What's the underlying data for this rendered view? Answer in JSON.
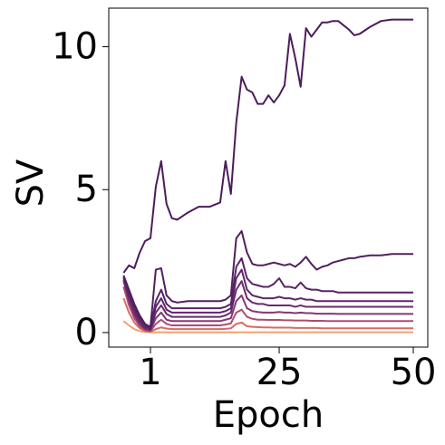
{
  "chart_data": {
    "type": "line",
    "xlabel": "Epoch",
    "ylabel": "SV",
    "x": [
      -4,
      -3,
      -2,
      -1,
      0,
      1,
      2,
      3,
      4,
      5,
      6,
      8,
      10,
      12,
      14,
      15,
      16,
      17,
      18,
      19,
      20,
      21,
      22,
      23,
      24,
      25,
      26,
      27,
      28,
      29,
      30,
      31,
      32,
      33,
      34,
      35,
      36,
      37,
      38,
      39,
      40,
      42,
      44,
      46,
      48,
      50
    ],
    "xlim": [
      -6.77,
      52.7
    ],
    "xticks": [
      1,
      25,
      50
    ],
    "ylim": [
      -0.51,
      11.35
    ],
    "yticks": [
      0,
      5,
      10
    ],
    "series": [
      {
        "color": "#4b1d5a",
        "values": [
          2.09,
          2.35,
          2.25,
          2.8,
          3.2,
          3.3,
          5.1,
          6.0,
          4.5,
          4.0,
          3.95,
          4.2,
          4.4,
          4.4,
          4.55,
          6.0,
          4.85,
          7.35,
          8.95,
          8.5,
          8.4,
          8.0,
          8.0,
          8.3,
          8.05,
          8.3,
          8.65,
          10.45,
          9.6,
          8.6,
          10.65,
          10.35,
          10.6,
          10.85,
          10.85,
          10.9,
          10.9,
          10.75,
          10.6,
          10.4,
          10.45,
          10.7,
          10.9,
          10.95,
          10.95,
          10.95
        ]
      },
      {
        "color": "#51205f",
        "values": [
          2.0,
          1.5,
          1.0,
          0.6,
          0.3,
          0.2,
          2.2,
          2.25,
          1.3,
          1.1,
          1.05,
          1.1,
          1.1,
          1.1,
          1.1,
          1.15,
          1.3,
          3.3,
          3.55,
          2.8,
          2.4,
          2.35,
          2.35,
          2.4,
          2.45,
          2.4,
          2.35,
          2.4,
          2.3,
          2.45,
          2.65,
          2.4,
          2.2,
          2.3,
          2.35,
          2.45,
          2.5,
          2.55,
          2.6,
          2.6,
          2.65,
          2.7,
          2.7,
          2.75,
          2.75,
          2.75
        ]
      },
      {
        "color": "#582365",
        "values": [
          1.95,
          1.4,
          0.9,
          0.5,
          0.25,
          0.15,
          1.1,
          1.5,
          1.0,
          0.85,
          0.85,
          0.85,
          0.85,
          0.85,
          0.85,
          0.9,
          1.0,
          2.3,
          2.6,
          1.9,
          1.7,
          1.65,
          1.6,
          1.6,
          1.7,
          1.9,
          1.6,
          1.6,
          1.55,
          1.75,
          1.55,
          1.5,
          1.5,
          1.45,
          1.45,
          1.45,
          1.4,
          1.4,
          1.4,
          1.4,
          1.4,
          1.4,
          1.4,
          1.4,
          1.4,
          1.4
        ]
      },
      {
        "color": "#602769",
        "values": [
          1.9,
          1.3,
          0.8,
          0.45,
          0.2,
          0.12,
          0.9,
          1.2,
          0.8,
          0.7,
          0.7,
          0.7,
          0.7,
          0.7,
          0.7,
          0.75,
          0.85,
          1.9,
          2.2,
          1.5,
          1.3,
          1.25,
          1.2,
          1.2,
          1.2,
          1.25,
          1.2,
          1.2,
          1.15,
          1.2,
          1.15,
          1.15,
          1.1,
          1.1,
          1.1,
          1.1,
          1.1,
          1.1,
          1.1,
          1.1,
          1.1,
          1.1,
          1.1,
          1.1,
          1.1,
          1.1
        ]
      },
      {
        "color": "#6b2b6e",
        "values": [
          1.85,
          1.2,
          0.7,
          0.35,
          0.15,
          0.1,
          0.7,
          0.95,
          0.65,
          0.55,
          0.55,
          0.55,
          0.55,
          0.55,
          0.55,
          0.6,
          0.7,
          1.5,
          1.8,
          1.2,
          1.05,
          1.0,
          1.0,
          0.95,
          0.95,
          0.95,
          0.95,
          0.95,
          0.9,
          0.95,
          0.9,
          0.9,
          0.9,
          0.9,
          0.9,
          0.9,
          0.9,
          0.9,
          0.9,
          0.9,
          0.9,
          0.9,
          0.9,
          0.9,
          0.9,
          0.9
        ]
      },
      {
        "color": "#853872",
        "values": [
          1.8,
          1.1,
          0.6,
          0.3,
          0.12,
          0.08,
          0.5,
          0.7,
          0.45,
          0.4,
          0.4,
          0.4,
          0.4,
          0.4,
          0.4,
          0.45,
          0.5,
          1.1,
          1.3,
          0.85,
          0.75,
          0.72,
          0.7,
          0.7,
          0.7,
          0.72,
          0.7,
          0.7,
          0.68,
          0.7,
          0.68,
          0.68,
          0.66,
          0.66,
          0.66,
          0.66,
          0.65,
          0.65,
          0.65,
          0.65,
          0.65,
          0.65,
          0.65,
          0.65,
          0.65,
          0.65
        ]
      },
      {
        "color": "#ad4d70",
        "values": [
          1.6,
          0.95,
          0.5,
          0.22,
          0.08,
          0.05,
          0.3,
          0.45,
          0.3,
          0.25,
          0.25,
          0.25,
          0.25,
          0.25,
          0.25,
          0.28,
          0.32,
          0.7,
          0.8,
          0.55,
          0.48,
          0.45,
          0.45,
          0.44,
          0.44,
          0.44,
          0.43,
          0.43,
          0.42,
          0.42,
          0.42,
          0.41,
          0.41,
          0.41,
          0.4,
          0.4,
          0.4,
          0.4,
          0.4,
          0.4,
          0.4,
          0.4,
          0.4,
          0.4,
          0.4,
          0.4
        ]
      },
      {
        "color": "#d86a66",
        "values": [
          1.2,
          0.7,
          0.35,
          0.15,
          0.05,
          0.03,
          0.12,
          0.18,
          0.14,
          0.12,
          0.12,
          0.12,
          0.12,
          0.12,
          0.12,
          0.13,
          0.15,
          0.3,
          0.35,
          0.22,
          0.2,
          0.19,
          0.18,
          0.18,
          0.17,
          0.17,
          0.17,
          0.17,
          0.16,
          0.16,
          0.16,
          0.16,
          0.16,
          0.15,
          0.15,
          0.15,
          0.15,
          0.15,
          0.15,
          0.15,
          0.15,
          0.15,
          0.15,
          0.15,
          0.15,
          0.15
        ]
      },
      {
        "color": "#f2a270",
        "values": [
          0.4,
          0.25,
          0.12,
          0.05,
          0.02,
          0.01,
          0.01,
          0.01,
          0.01,
          0.01,
          0.01,
          0.01,
          0.01,
          0.01,
          0.01,
          0.01,
          0.01,
          0.01,
          0.01,
          0.01,
          0.01,
          0.01,
          0.01,
          0.01,
          0.01,
          0.01,
          0.01,
          0.01,
          0.01,
          0.01,
          0.01,
          0.01,
          0.01,
          0.01,
          0.01,
          0.01,
          0.01,
          0.01,
          0.01,
          0.01,
          0.01,
          0.01,
          0.01,
          0.01,
          0.01,
          0.01
        ]
      }
    ]
  }
}
